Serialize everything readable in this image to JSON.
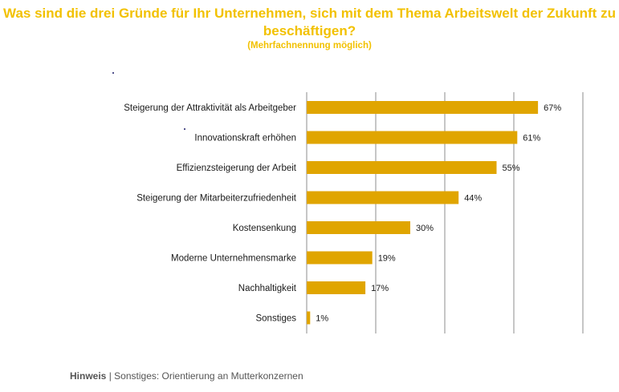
{
  "header": {
    "title": "Was sind die drei Gründe für Ihr Unternehmen, sich mit dem Thema Arbeitswelt der Zukunft zu beschäftigen?",
    "subtitle": "(Mehrfachnennung möglich)"
  },
  "footer": {
    "label": "Hinweis",
    "separator": "|",
    "text": "Sonstiges: Orientierung an Mutterkonzernen"
  },
  "colors": {
    "bar": "#e0a500",
    "title": "#f2c100"
  },
  "chart_data": {
    "type": "bar",
    "orientation": "horizontal",
    "title": "Was sind die drei Gründe für Ihr Unternehmen, sich mit dem Thema Arbeitswelt der Zukunft zu beschäftigen?",
    "subtitle": "(Mehrfachnennung möglich)",
    "categories": [
      "Steigerung der Attraktivität als Arbeitgeber",
      "Innovationskraft erhöhen",
      "Effizienzsteigerung der Arbeit",
      "Steigerung der Mitarbeiterzufriedenheit",
      "Kostensenkung",
      "Moderne Unternehmensmarke",
      "Nachhaltigkeit",
      "Sonstiges"
    ],
    "values": [
      67,
      61,
      55,
      44,
      30,
      19,
      17,
      1
    ],
    "value_labels": [
      "67%",
      "61%",
      "55%",
      "44%",
      "30%",
      "19%",
      "17%",
      "1%"
    ],
    "xlim": [
      0,
      80
    ],
    "grid": true,
    "xlabel": "",
    "ylabel": ""
  }
}
